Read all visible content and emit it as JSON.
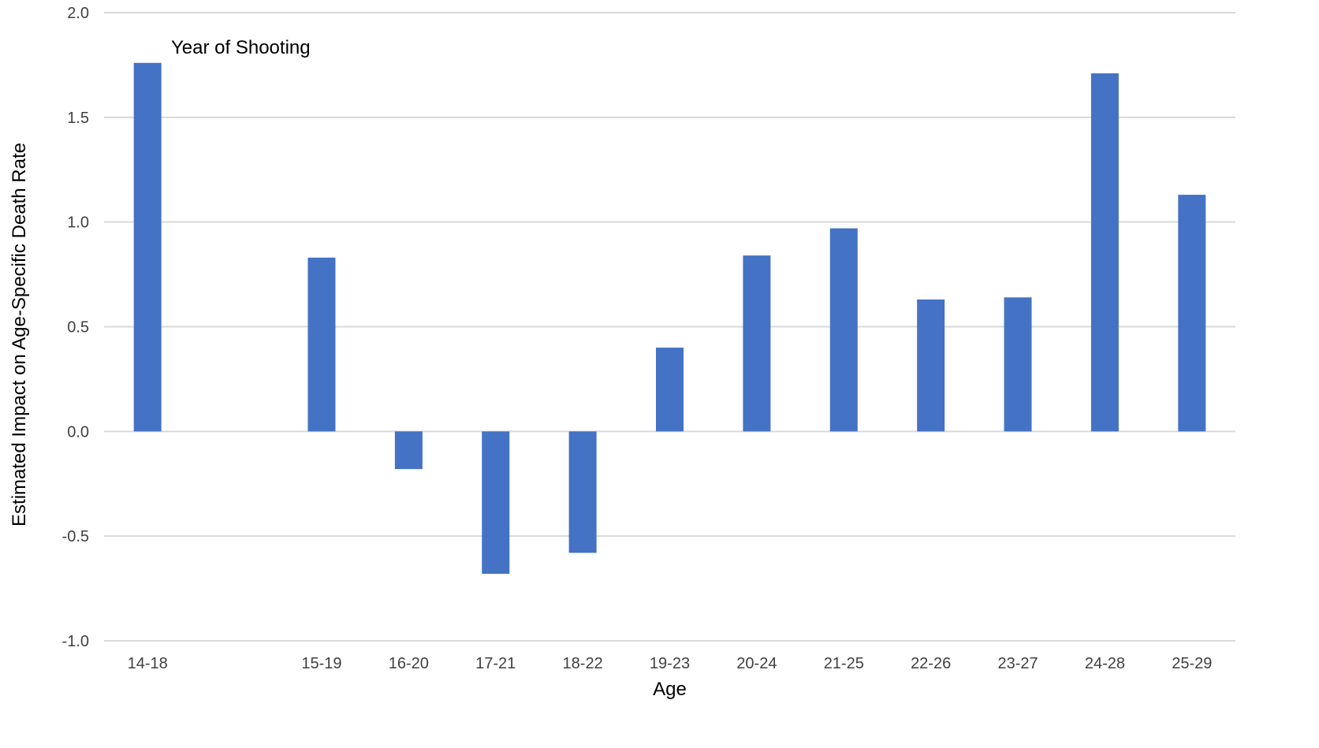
{
  "chart_data": {
    "type": "bar",
    "title": "",
    "xlabel": "Age",
    "ylabel": "Estimated Impact on Age-Specific Death Rate",
    "ylim": [
      -1.0,
      2.0
    ],
    "yticks": [
      "2.0",
      "1.5",
      "1.0",
      "0.5",
      "0.0",
      "-0.5",
      "-1.0"
    ],
    "grid": true,
    "legend": "none",
    "bar_color": "#4472C4",
    "categories": [
      "14-18",
      "",
      "15-19",
      "16-20",
      "17-21",
      "18-22",
      "19-23",
      "20-24",
      "21-25",
      "22-26",
      "23-27",
      "24-28",
      "25-29"
    ],
    "values": [
      1.76,
      null,
      0.83,
      -0.18,
      -0.68,
      -0.58,
      0.4,
      0.84,
      0.97,
      0.63,
      0.64,
      1.71,
      1.13
    ],
    "annotations": [
      {
        "text": "Year of Shooting",
        "category": "14-18"
      }
    ]
  }
}
